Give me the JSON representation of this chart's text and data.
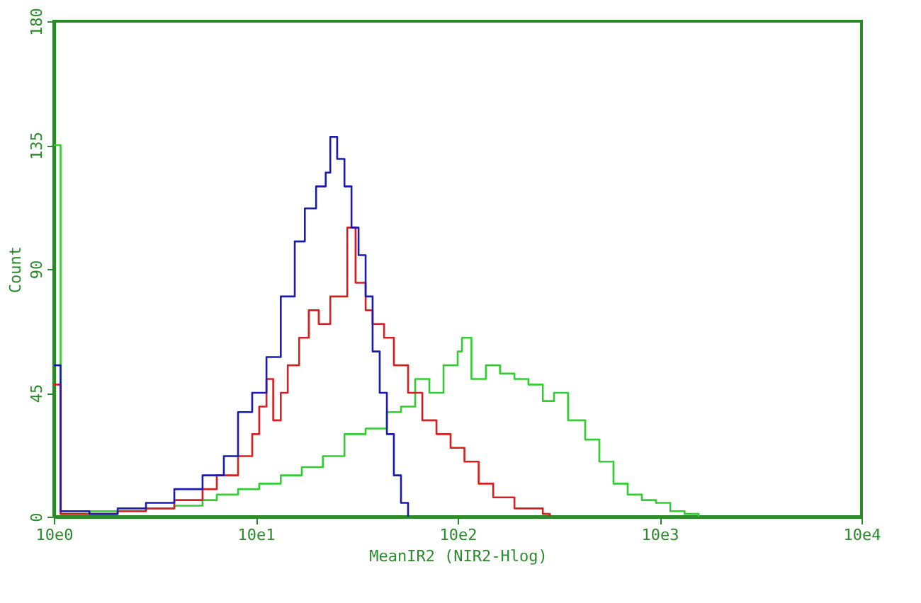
{
  "chart_data": {
    "type": "step",
    "xlabel": "MeanIR2 (NIR2-Hlog)",
    "ylabel": "Count",
    "log": "x",
    "grid": false,
    "line_style": "solid",
    "xlim": [
      10,
      100000
    ],
    "ylim": [
      0,
      180
    ],
    "xticks": [
      {
        "value": 10,
        "label": "10e0"
      },
      {
        "value": 100,
        "label": "10e1"
      },
      {
        "value": 1000,
        "label": "10e2"
      },
      {
        "value": 10000,
        "label": "10e3"
      },
      {
        "value": 100000,
        "label": "10e4"
      }
    ],
    "yticks": [
      0,
      45,
      90,
      135,
      180
    ],
    "series": [
      {
        "color": "#33cc33",
        "x": [
          10,
          10.8,
          15,
          20.7,
          28.6,
          39.5,
          54.5,
          64.1,
          81.7,
          104,
          133,
          169,
          215,
          275,
          350,
          446,
          524,
          616,
          724,
          851,
          1000,
          1050,
          1170,
          1380,
          1620,
          1910,
          2240,
          2640,
          3000,
          3520,
          4280,
          5030,
          5910,
          6950,
          8170,
          9600,
          11300,
          13300,
          15600
        ],
        "values": [
          135,
          1,
          2,
          2,
          3,
          4,
          6,
          8,
          10,
          12,
          15,
          18,
          22,
          30,
          32,
          38,
          40,
          50,
          45,
          55,
          60,
          65,
          50,
          55,
          52,
          50,
          48,
          42,
          45,
          35,
          28,
          20,
          12,
          8,
          6,
          5,
          2,
          1,
          0
        ]
      },
      {
        "color": "#d42020",
        "x": [
          10,
          10.8,
          15,
          20.7,
          28.6,
          39.5,
          54.5,
          64.1,
          81.7,
          96,
          104,
          113,
          122,
          133,
          144,
          164,
          183,
          205,
          234,
          266,
          284,
          312,
          350,
          379,
          432,
          483,
          568,
          668,
          785,
          922,
          1080,
          1270,
          1500,
          1910,
          2640,
          2860
        ],
        "values": [
          48,
          1,
          1,
          2,
          3,
          6,
          10,
          15,
          22,
          30,
          40,
          50,
          35,
          45,
          55,
          65,
          75,
          70,
          80,
          80,
          105,
          85,
          75,
          70,
          65,
          55,
          45,
          35,
          30,
          25,
          20,
          12,
          7,
          3,
          1,
          0
        ]
      },
      {
        "color": "#1a1ab0",
        "x": [
          10,
          10.8,
          15,
          20.7,
          28.6,
          39.5,
          54.5,
          69.5,
          81.7,
          96,
          113,
          133,
          156,
          175,
          199,
          222,
          234,
          253,
          275,
          298,
          323,
          350,
          379,
          411,
          446,
          483,
          524,
          568
        ],
        "values": [
          55,
          2,
          1,
          3,
          5,
          10,
          15,
          22,
          38,
          45,
          58,
          80,
          100,
          112,
          120,
          125,
          138,
          130,
          120,
          105,
          95,
          80,
          60,
          45,
          30,
          15,
          5,
          0
        ]
      }
    ]
  }
}
